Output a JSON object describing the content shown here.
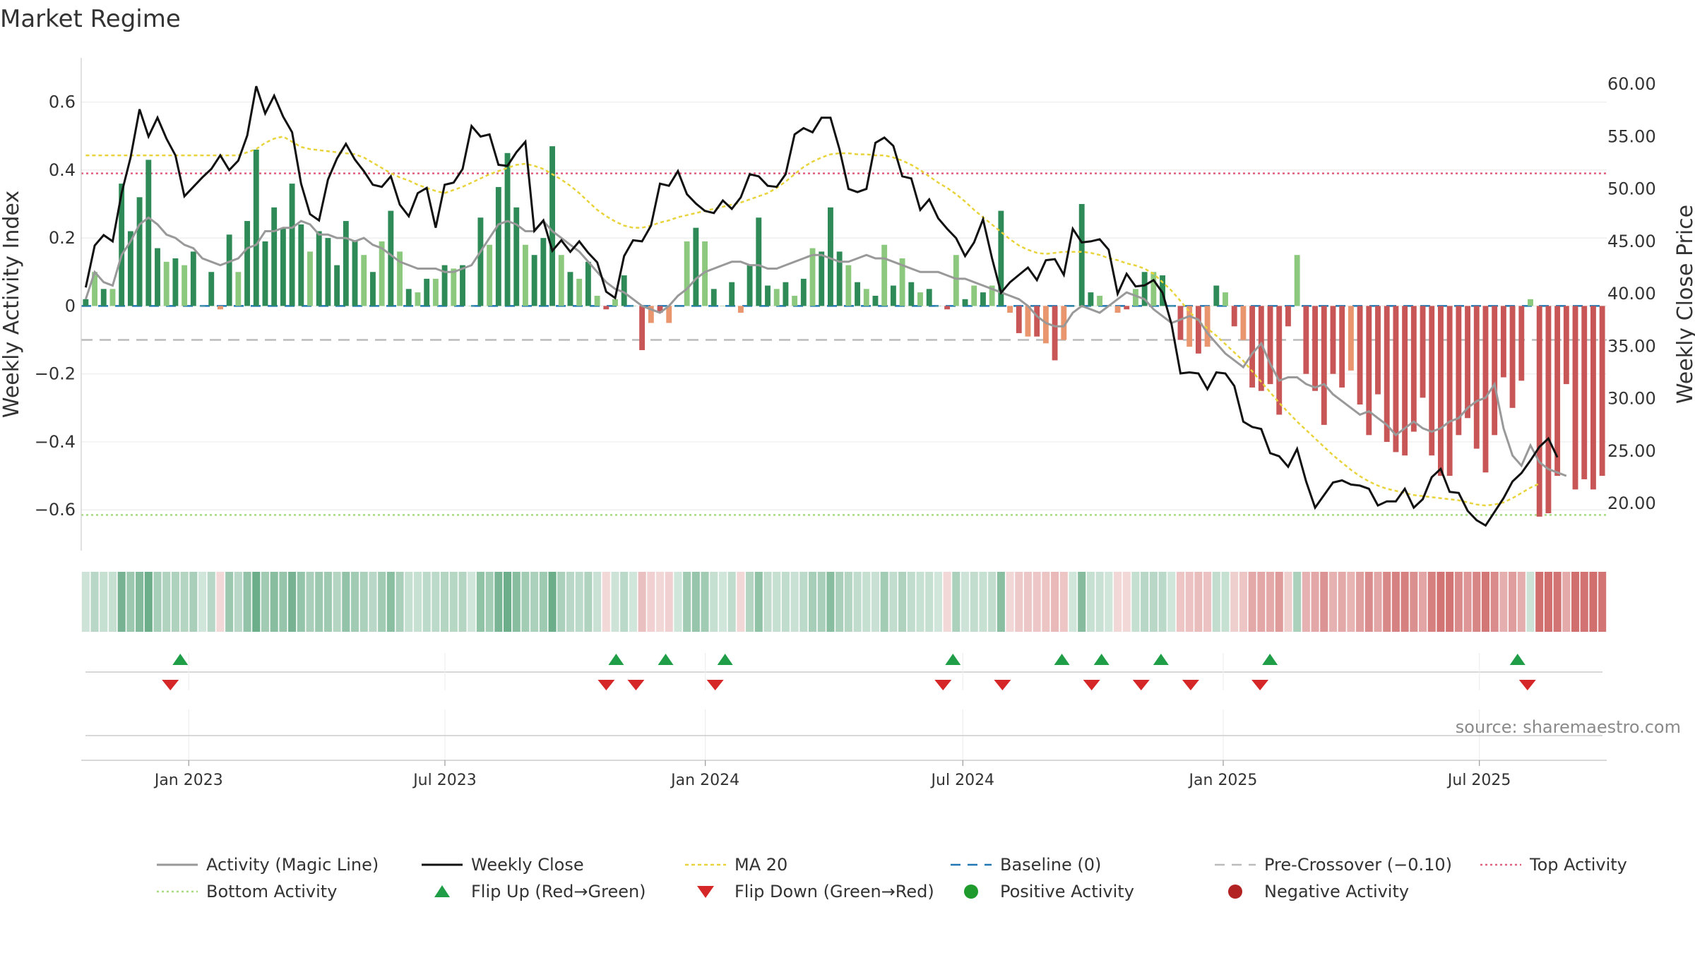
{
  "title": "Market Regime",
  "source": "source: sharemaestro.com",
  "colors": {
    "activity_line": "#999999",
    "close_line": "#111111",
    "ma_line": "#e8d33a",
    "baseline": "#1f77b4",
    "pre_crossover": "#bbbbbb",
    "top_activity": "#e0607e",
    "bottom_activity": "#a6dc7e",
    "pos_strong": "#2e8b57",
    "pos_light": "#8cc97e",
    "neg_strong": "#c95656",
    "neg_light": "#e9956e",
    "flip_up": "#1f9e47",
    "flip_down": "#d62728",
    "positive_dot": "#1f9b2e",
    "negative_dot": "#b22222"
  },
  "legend": [
    {
      "label": "Activity (Magic Line)",
      "icon": "gray-line"
    },
    {
      "label": "Weekly Close",
      "icon": "black-line"
    },
    {
      "label": "MA 20",
      "icon": "yellow-dotted-line"
    },
    {
      "label": "Baseline (0)",
      "icon": "blue-dashed-line"
    },
    {
      "label": "Pre-Crossover (−0.10)",
      "icon": "gray-dashed-line"
    },
    {
      "label": "Top Activity",
      "icon": "pink-dotted-line"
    },
    {
      "label": "Bottom Activity",
      "icon": "green-dotted-line"
    },
    {
      "label": "Flip Up (Red→Green)",
      "icon": "green-up-triangle"
    },
    {
      "label": "Flip Down (Green→Red)",
      "icon": "red-down-triangle"
    },
    {
      "label": "Positive Activity",
      "icon": "green-dot"
    },
    {
      "label": "Negative Activity",
      "icon": "red-dot"
    }
  ],
  "chart_data": {
    "type": "bar",
    "ylabel": "Weekly Activity Index",
    "ylabel_right": "Weekly Close Price",
    "ylim": [
      -0.72,
      0.73
    ],
    "ylim_right": [
      15.5,
      62.5
    ],
    "yticks": [
      0.6,
      0.4,
      0.2,
      0,
      -0.2,
      -0.4,
      -0.6
    ],
    "ytick_labels": [
      "0.6",
      "0.4",
      "0.2",
      "0",
      "−0.2",
      "−0.4",
      "−0.6"
    ],
    "yticks_right": [
      60,
      55,
      50,
      45,
      40,
      35,
      30,
      25,
      20
    ],
    "ytick_labels_right": [
      "60.00",
      "55.00",
      "50.00",
      "45.00",
      "40.00",
      "35.00",
      "30.00",
      "25.00",
      "20.00"
    ],
    "x_range": [
      "2022-10-17",
      "2025-09-29"
    ],
    "xticks": [
      "2023-01-01",
      "2023-07-01",
      "2024-01-01",
      "2024-07-01",
      "2025-01-01",
      "2025-07-01"
    ],
    "xtick_labels": [
      "Jan 2023",
      "Jul 2023",
      "Jan 2024",
      "Jul 2024",
      "Jan 2025",
      "Jul 2025"
    ],
    "levels": {
      "top_activity": 0.39,
      "bottom_activity": -0.615,
      "pre_crossover": -0.1,
      "baseline": 0
    },
    "series": [
      {
        "name": "Activity (Magic Line)",
        "role": "magic",
        "values": [
          0.02,
          0.1,
          0.07,
          0.06,
          0.15,
          0.19,
          0.24,
          0.26,
          0.24,
          0.21,
          0.2,
          0.18,
          0.17,
          0.14,
          0.13,
          0.12,
          0.13,
          0.14,
          0.17,
          0.18,
          0.22,
          0.22,
          0.23,
          0.23,
          0.25,
          0.24,
          0.21,
          0.21,
          0.2,
          0.2,
          0.19,
          0.2,
          0.18,
          0.17,
          0.15,
          0.13,
          0.12,
          0.11,
          0.11,
          0.11,
          0.1,
          0.1,
          0.11,
          0.12,
          0.16,
          0.2,
          0.24,
          0.25,
          0.24,
          0.22,
          0.22,
          0.25,
          0.22,
          0.2,
          0.18,
          0.16,
          0.13,
          0.1,
          0.07,
          0.05,
          0.04,
          0.02,
          0.0,
          -0.01,
          -0.02,
          0.0,
          0.03,
          0.05,
          0.08,
          0.1,
          0.11,
          0.12,
          0.13,
          0.13,
          0.12,
          0.12,
          0.11,
          0.11,
          0.12,
          0.13,
          0.14,
          0.15,
          0.15,
          0.14,
          0.13,
          0.13,
          0.14,
          0.15,
          0.14,
          0.14,
          0.13,
          0.12,
          0.11,
          0.1,
          0.1,
          0.1,
          0.09,
          0.08,
          0.08,
          0.07,
          0.06,
          0.05,
          0.04,
          0.03,
          0.02,
          0.0,
          -0.03,
          -0.05,
          -0.06,
          -0.06,
          -0.02,
          0.0,
          -0.01,
          -0.02,
          0.0,
          0.02,
          0.04,
          0.03,
          0.02,
          -0.01,
          -0.03,
          -0.05,
          -0.04,
          -0.03,
          -0.04,
          -0.08,
          -0.11,
          -0.14,
          -0.16,
          -0.18,
          -0.14,
          -0.11,
          -0.17,
          -0.22,
          -0.21,
          -0.21,
          -0.23,
          -0.24,
          -0.23,
          -0.26,
          -0.28,
          -0.3,
          -0.32,
          -0.31,
          -0.33,
          -0.35,
          -0.38,
          -0.36,
          -0.34,
          -0.36,
          -0.37,
          -0.36,
          -0.34,
          -0.33,
          -0.3,
          -0.28,
          -0.27,
          -0.23,
          -0.36,
          -0.44,
          -0.47,
          -0.41,
          -0.46,
          -0.48,
          -0.49,
          -0.5
        ]
      },
      {
        "name": "Weekly Close",
        "role": "close",
        "values": [
          40.6,
          44.6,
          45.6,
          45.0,
          49.6,
          53.0,
          57.6,
          55.0,
          56.8,
          54.8,
          53.2,
          49.3,
          50.2,
          51.1,
          51.9,
          53.2,
          51.8,
          52.7,
          55.1,
          59.8,
          57.2,
          58.9,
          56.9,
          55.4,
          50.5,
          47.6,
          47.0,
          50.9,
          52.9,
          54.3,
          52.8,
          51.7,
          50.4,
          50.2,
          51.2,
          48.5,
          47.4,
          49.6,
          50.1,
          46.3,
          50.4,
          50.6,
          51.9,
          56.0,
          55.0,
          55.2,
          52.3,
          52.2,
          53.5,
          54.5,
          46.0,
          47.0,
          44.1,
          45.1,
          44.0,
          45.0,
          43.9,
          43.0,
          40.2,
          39.6,
          43.6,
          45.1,
          45.0,
          46.5,
          50.5,
          50.3,
          51.7,
          49.5,
          48.6,
          47.9,
          47.7,
          48.9,
          48.1,
          49.2,
          51.4,
          51.2,
          50.3,
          50.2,
          51.4,
          55.2,
          55.8,
          55.4,
          56.8,
          56.8,
          53.8,
          50.0,
          49.7,
          50.0,
          54.4,
          54.9,
          54.1,
          51.2,
          51.0,
          48.0,
          49.0,
          47.2,
          46.2,
          45.3,
          43.6,
          44.9,
          47.1,
          43.4,
          40.1,
          41.1,
          41.8,
          42.5,
          41.3,
          43.2,
          43.3,
          41.8,
          46.2,
          44.9,
          45.0,
          45.2,
          44.2,
          40.0,
          41.9,
          40.7,
          40.8,
          41.3,
          40.1,
          37.1,
          32.4,
          32.5,
          32.4,
          30.9,
          32.5,
          32.4,
          31.2,
          27.8,
          27.3,
          27.1,
          24.8,
          24.5,
          23.5,
          25.2,
          22.1,
          19.6,
          20.8,
          22.0,
          22.2,
          21.8,
          21.7,
          21.4,
          19.8,
          20.2,
          20.2,
          21.4,
          19.6,
          20.4,
          22.5,
          23.3,
          21.1,
          21.0,
          19.3,
          18.4,
          17.9,
          19.2,
          20.5,
          22.1,
          22.9,
          24.1,
          25.4,
          26.2,
          24.4
        ]
      },
      {
        "name": "MA 20",
        "role": "ma",
        "values": [
          53.2,
          53.2,
          53.2,
          53.2,
          53.2,
          53.2,
          53.2,
          53.2,
          53.2,
          53.2,
          53.2,
          53.2,
          53.2,
          53.2,
          53.2,
          53.2,
          53.2,
          53.2,
          53.5,
          53.8,
          54.4,
          54.8,
          55.0,
          54.5,
          54.0,
          53.8,
          53.7,
          53.6,
          53.5,
          53.4,
          53.3,
          53.0,
          52.5,
          52.0,
          51.5,
          51.1,
          50.8,
          50.4,
          50.1,
          49.8,
          49.6,
          49.9,
          50.2,
          50.6,
          51.0,
          51.4,
          51.7,
          52.0,
          52.3,
          52.4,
          52.2,
          51.9,
          51.4,
          50.9,
          50.3,
          49.6,
          48.8,
          48.0,
          47.4,
          46.9,
          46.5,
          46.3,
          46.3,
          46.5,
          46.8,
          47.0,
          47.3,
          47.5,
          47.7,
          47.9,
          48.1,
          48.3,
          48.5,
          48.7,
          49.0,
          49.3,
          49.6,
          50.1,
          50.7,
          51.4,
          52.1,
          52.6,
          53.0,
          53.3,
          53.4,
          53.4,
          53.3,
          53.3,
          53.2,
          53.2,
          53.0,
          52.7,
          52.3,
          51.8,
          51.2,
          50.6,
          50.1,
          49.5,
          48.8,
          48.0,
          47.3,
          46.6,
          45.9,
          45.2,
          44.6,
          44.2,
          43.9,
          43.8,
          43.9,
          44.0,
          44.0,
          44.0,
          43.9,
          43.7,
          43.4,
          43.2,
          42.9,
          42.7,
          42.4,
          41.9,
          41.1,
          40.3,
          39.3,
          38.3,
          37.4,
          36.7,
          36.0,
          35.2,
          34.4,
          33.6,
          32.6,
          31.6,
          30.6,
          29.6,
          28.7,
          27.8,
          27.0,
          26.2,
          25.4,
          24.6,
          23.9,
          23.2,
          22.6,
          22.1,
          21.7,
          21.4,
          21.2,
          21.0,
          20.8,
          20.7,
          20.6,
          20.5,
          20.4,
          20.3,
          20.1,
          19.9,
          19.8,
          19.9,
          20.1,
          20.5,
          21.0,
          21.5,
          21.9
        ]
      },
      {
        "name": "Weekly Activity Index",
        "role": "bars",
        "values": [
          0.02,
          0.1,
          0.05,
          0.05,
          0.36,
          0.22,
          0.32,
          0.43,
          0.17,
          0.13,
          0.14,
          0.12,
          0.16,
          0.0,
          0.1,
          -0.01,
          0.21,
          0.1,
          0.25,
          0.46,
          0.19,
          0.29,
          0.23,
          0.36,
          0.24,
          0.16,
          0.22,
          0.2,
          0.12,
          0.25,
          0.19,
          0.15,
          0.1,
          0.19,
          0.28,
          0.16,
          0.05,
          0.04,
          0.08,
          0.08,
          0.12,
          0.11,
          0.12,
          0.0,
          0.26,
          0.18,
          0.35,
          0.45,
          0.29,
          0.18,
          0.15,
          0.2,
          0.47,
          0.15,
          0.1,
          0.08,
          0.13,
          0.03,
          -0.01,
          0.02,
          0.09,
          0.0,
          -0.13,
          -0.05,
          -0.02,
          -0.05,
          0.0,
          0.19,
          0.23,
          0.19,
          0.05,
          0.0,
          0.07,
          -0.02,
          0.12,
          0.26,
          0.06,
          0.05,
          0.07,
          0.03,
          0.08,
          0.17,
          0.16,
          0.29,
          0.16,
          0.12,
          0.07,
          0.05,
          0.03,
          0.18,
          0.06,
          0.14,
          0.07,
          0.04,
          0.05,
          0.0,
          -0.01,
          0.15,
          0.02,
          0.06,
          0.04,
          0.06,
          0.28,
          -0.02,
          -0.08,
          -0.09,
          -0.09,
          -0.11,
          -0.16,
          -0.1,
          0.0,
          0.3,
          0.04,
          0.03,
          0.0,
          -0.02,
          -0.01,
          0.05,
          0.1,
          0.1,
          0.09,
          0.0,
          -0.1,
          -0.12,
          -0.14,
          -0.12,
          0.06,
          0.04,
          -0.06,
          -0.1,
          -0.24,
          -0.25,
          -0.23,
          -0.32,
          -0.06,
          0.15,
          -0.2,
          -0.25,
          -0.35,
          -0.2,
          -0.24,
          -0.19,
          -0.29,
          -0.38,
          -0.26,
          -0.4,
          -0.43,
          -0.44,
          -0.37,
          -0.27,
          -0.44,
          -0.5,
          -0.5,
          -0.38,
          -0.33,
          -0.42,
          -0.49,
          -0.38,
          -0.21,
          -0.3,
          -0.22,
          0.02,
          -0.62,
          -0.61,
          -0.5,
          -0.23,
          -0.54,
          -0.51,
          -0.54,
          -0.5
        ]
      },
      {
        "name": "Flip Up (Red→Green)",
        "role": "flip_up",
        "x": [
          "2022-12-26",
          "2023-10-30",
          "2023-12-04",
          "2024-01-15",
          "2024-06-24",
          "2024-09-09",
          "2024-10-07",
          "2024-11-18",
          "2025-02-03",
          "2025-07-28"
        ]
      },
      {
        "name": "Flip Down (Green→Red)",
        "role": "flip_down",
        "x": [
          "2022-12-19",
          "2023-10-23",
          "2023-11-13",
          "2024-01-08",
          "2024-06-17",
          "2024-07-29",
          "2024-09-30",
          "2024-11-04",
          "2024-12-09",
          "2025-01-27",
          "2025-08-04"
        ]
      }
    ]
  }
}
